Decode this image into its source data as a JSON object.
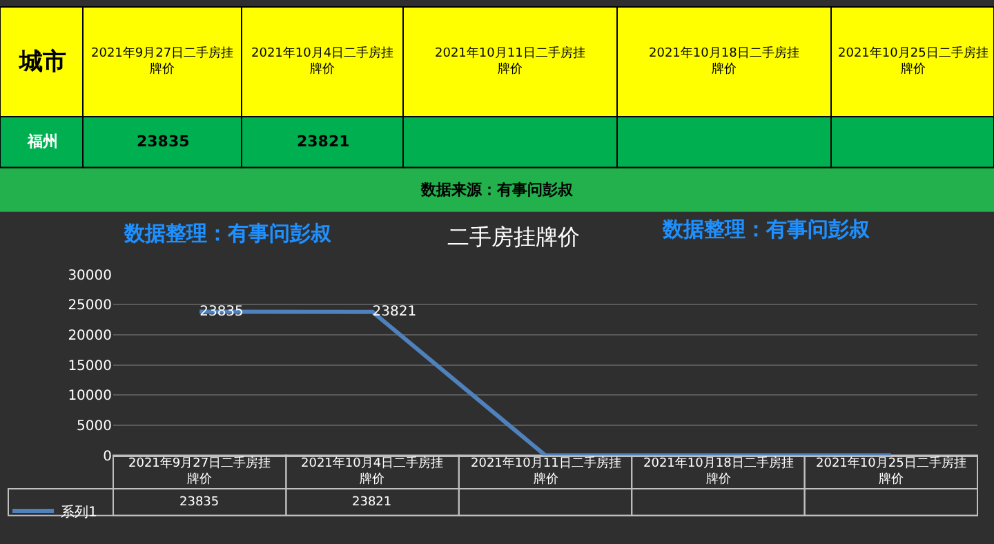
{
  "chart_data": {
    "type": "line",
    "title": "二手房挂牌价",
    "categories": [
      "2021年9月27日二手房挂牌价",
      "2021年10月4日二手房挂牌价",
      "2021年10月11日二手房挂牌价",
      "2021年10月18日二手房挂牌价",
      "2021年10月25日二手房挂牌价"
    ],
    "series": [
      {
        "name": "系列1",
        "color": "#4f81bd",
        "values": [
          23835,
          23821,
          0,
          0,
          0
        ],
        "value_labels": [
          "23835",
          "23821",
          null,
          null,
          null
        ]
      }
    ],
    "ylim": [
      0,
      30000
    ],
    "yticks": [
      0,
      5000,
      10000,
      15000,
      20000,
      25000,
      30000
    ],
    "grid": "y",
    "legend": "bottom left",
    "marker": "none",
    "line_style": "solid",
    "annotations": [
      "城市",
      "福州",
      "数据来源：有事问彭叔",
      "数据整理：有事问彭叔",
      "数据整理：有事问彭叔"
    ]
  }
}
